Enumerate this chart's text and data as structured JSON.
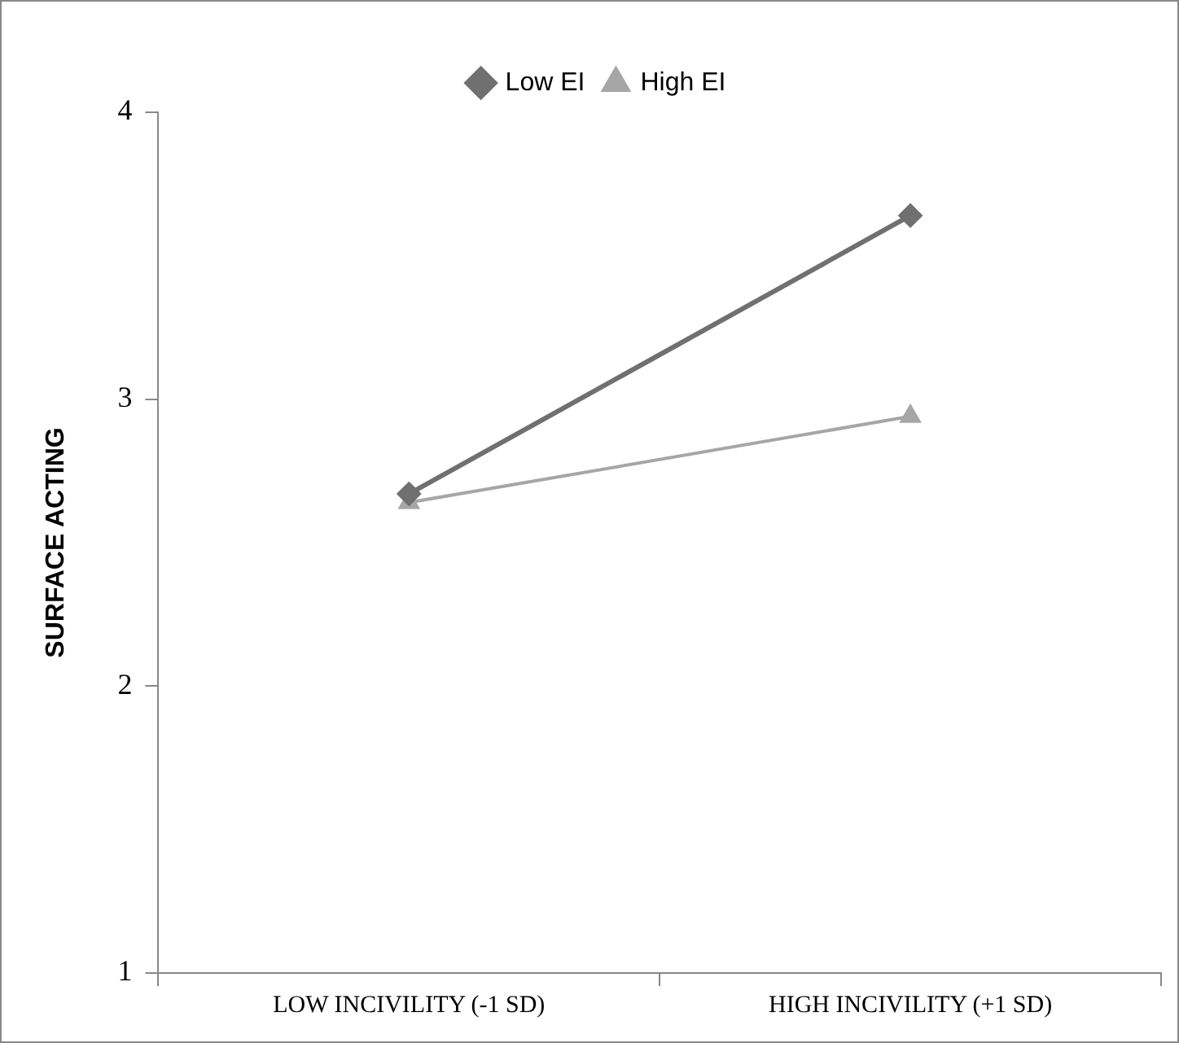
{
  "chart_data": {
    "type": "line",
    "ylabel": "SURFACE ACTING",
    "categories": [
      "LOW INCIVILITY (-1 SD)",
      "HIGH INCIVILITY (+1 SD)"
    ],
    "series": [
      {
        "name": "Low EI",
        "color": "#707070",
        "values": [
          2.67,
          3.64
        ],
        "marker": "diamond"
      },
      {
        "name": "High EI",
        "color": "#a6a6a6",
        "values": [
          2.64,
          2.94
        ],
        "marker": "triangle"
      }
    ],
    "ylim": [
      1,
      4
    ],
    "yticks": [
      1,
      2,
      3,
      4
    ],
    "grid": false,
    "legend": "top",
    "line_style": "solid"
  }
}
